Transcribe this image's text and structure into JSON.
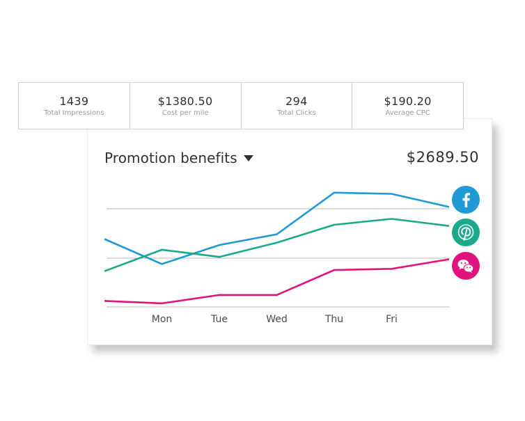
{
  "stats": [
    {
      "value": "1439",
      "label": "Total Impressions"
    },
    {
      "value": "$1380.50",
      "label": "Cost per mile"
    },
    {
      "value": "294",
      "label": "Total Clicks"
    },
    {
      "value": "$190.20",
      "label": "Average CPC"
    }
  ],
  "card": {
    "title": "Promotion benefits",
    "total": "$2689.50"
  },
  "chart_data": {
    "type": "line",
    "categories": [
      "",
      "Mon",
      "Tue",
      "Wed",
      "Thu",
      "Fri",
      ""
    ],
    "tick_labels": [
      "Mon",
      "Tue",
      "Wed",
      "Thu",
      "Fri"
    ],
    "ylim": [
      0,
      100
    ],
    "grid": true,
    "series": [
      {
        "icon": "facebook-icon",
        "color": "#1e9ad6",
        "values": [
          57,
          36,
          52,
          61,
          96,
          95,
          84
        ]
      },
      {
        "icon": "pinterest-icon",
        "color": "#1aaa8a",
        "values": [
          30,
          48,
          42,
          54,
          69,
          74,
          68
        ]
      },
      {
        "icon": "wechat-icon",
        "color": "#e0137f",
        "values": [
          5,
          3,
          10,
          10,
          31,
          32,
          40
        ]
      }
    ]
  },
  "colors": {
    "facebook": "#1e9ad6",
    "pinterest": "#1aaa8a",
    "wechat": "#e0137f"
  }
}
